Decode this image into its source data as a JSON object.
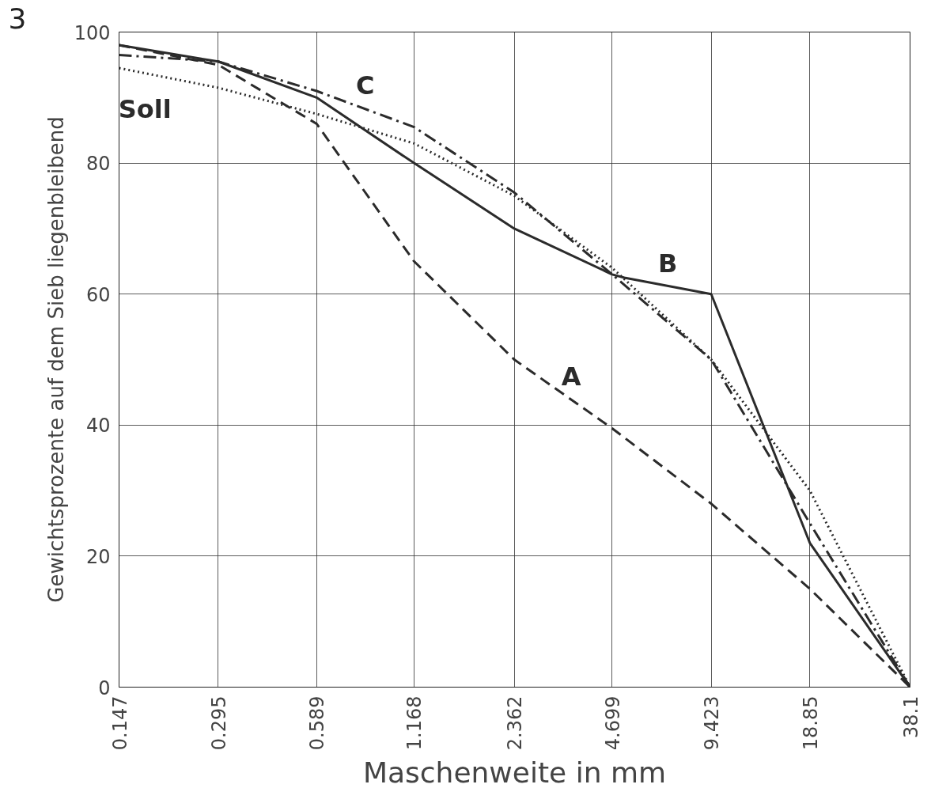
{
  "chart_data": {
    "type": "line",
    "xlabel": "Maschenweite in mm",
    "ylabel": "Gewichtsprozente auf dem Sieb liegenbleibend",
    "x": [
      0.147,
      0.295,
      0.589,
      1.168,
      2.362,
      4.699,
      9.423,
      18.85,
      38.1
    ],
    "series": [
      {
        "name": "A",
        "color": "#2b2b2b",
        "line_style": "dashed",
        "values": [
          98,
          95,
          86,
          65,
          50,
          39.5,
          28,
          15,
          0
        ]
      },
      {
        "name": "B",
        "color": "#2b2b2b",
        "line_style": "solid",
        "x": [
          0.147,
          0.295,
          0.589,
          1.168,
          2.362,
          4.699,
          5.12,
          9.423,
          18.85,
          38.1
        ],
        "values": [
          98,
          95.5,
          90,
          80,
          70,
          63,
          62.5,
          60,
          22,
          0
        ]
      },
      {
        "name": "C",
        "color": "#2b2b2b",
        "line_style": "dashdot",
        "values": [
          96.5,
          95.5,
          91,
          85.5,
          75.5,
          63,
          50,
          25,
          0
        ]
      },
      {
        "name": "Soll",
        "color": "#2b2b2b",
        "line_style": "dotted",
        "values": [
          94.5,
          91.5,
          87.5,
          83,
          75,
          64,
          50,
          30,
          0
        ]
      }
    ],
    "log": "x",
    "xlim": [
      0.147,
      38.1
    ],
    "ylim": [
      0,
      100
    ],
    "xticks": [
      0.147,
      0.295,
      0.589,
      1.168,
      2.362,
      4.699,
      9.423,
      18.85,
      38.1
    ],
    "yticks": [
      0,
      20,
      40,
      60,
      80,
      100
    ],
    "grid": true,
    "marker": "none",
    "annotations": [
      "3"
    ]
  }
}
